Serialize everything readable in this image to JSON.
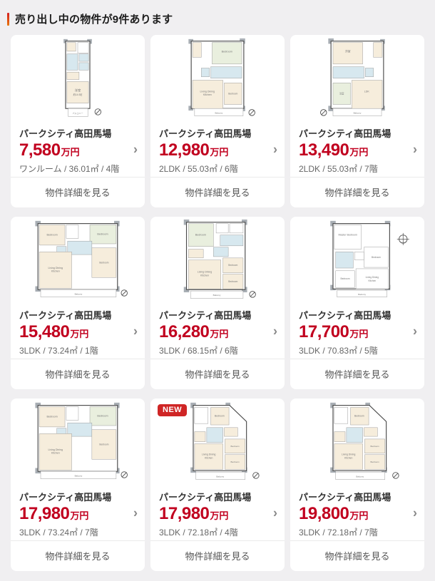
{
  "header": {
    "title": "売り出し中の物件が9件あります"
  },
  "colors": {
    "page_background": "#f0eff1",
    "card_background": "#ffffff",
    "price": "#c1001f",
    "badge": "#cf2525",
    "accent_top": "#d41c20",
    "accent_bottom": "#e8770a"
  },
  "labels": {
    "detail_button": "物件詳細を見る",
    "price_unit": "万円",
    "new_badge": "NEW"
  },
  "icons": {
    "chevron_right": "›"
  },
  "cards": [
    {
      "name": "パークシティ高田馬場",
      "price": "7,580",
      "details": "ワンルーム / 36.01㎡ / 4階",
      "is_new": false,
      "floorplan": "studio"
    },
    {
      "name": "パークシティ高田馬場",
      "price": "12,980",
      "details": "2LDK / 55.03㎡ / 6階",
      "is_new": false,
      "floorplan": "ldk2a"
    },
    {
      "name": "パークシティ高田馬場",
      "price": "13,490",
      "details": "2LDK / 55.03㎡ / 7階",
      "is_new": false,
      "floorplan": "ldk2b"
    },
    {
      "name": "パークシティ高田馬場",
      "price": "15,480",
      "details": "3LDK / 73.24㎡ / 1階",
      "is_new": false,
      "floorplan": "ldk3wide"
    },
    {
      "name": "パークシティ高田馬場",
      "price": "16,280",
      "details": "3LDK / 68.15㎡ / 6階",
      "is_new": false,
      "floorplan": "ldk3tall"
    },
    {
      "name": "パークシティ高田馬場",
      "price": "17,700",
      "details": "3LDK / 70.83㎡ / 5階",
      "is_new": false,
      "floorplan": "ldk3outline"
    },
    {
      "name": "パークシティ高田馬場",
      "price": "17,980",
      "details": "3LDK / 73.24㎡ / 7階",
      "is_new": false,
      "floorplan": "ldk3wide"
    },
    {
      "name": "パークシティ高田馬場",
      "price": "17,980",
      "details": "3LDK / 72.18㎡ / 4階",
      "is_new": true,
      "floorplan": "ldk3diag"
    },
    {
      "name": "パークシティ高田馬場",
      "price": "19,800",
      "details": "3LDK / 72.18㎡ / 7階",
      "is_new": false,
      "floorplan": "ldk3diag"
    }
  ]
}
